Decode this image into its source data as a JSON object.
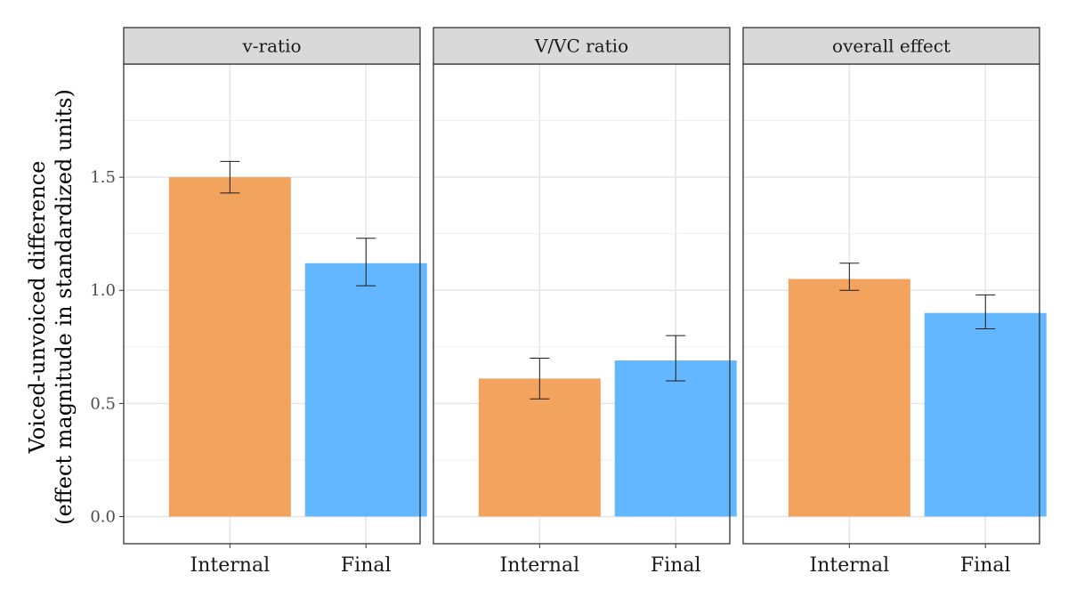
{
  "chart_data": {
    "type": "bar",
    "facets": [
      "v-ratio",
      "V/VC ratio",
      "overall effect"
    ],
    "categories": [
      "Internal",
      "Final"
    ],
    "panels": [
      {
        "facet": "v-ratio",
        "values": [
          1.5,
          1.12
        ],
        "error_low": [
          1.43,
          1.02
        ],
        "error_high": [
          1.57,
          1.23
        ]
      },
      {
        "facet": "V/VC ratio",
        "values": [
          0.61,
          0.69
        ],
        "error_low": [
          0.52,
          0.6
        ],
        "error_high": [
          0.7,
          0.8
        ]
      },
      {
        "facet": "overall effect",
        "values": [
          1.05,
          0.9
        ],
        "error_low": [
          1.0,
          0.83
        ],
        "error_high": [
          1.12,
          0.98
        ]
      }
    ],
    "ylabel_line1": "Voiced-unvoiced difference",
    "ylabel_line2": "(effect magnitude in standardized units)",
    "xlabel": "",
    "yticks": [
      0.0,
      0.5,
      1.0,
      1.5
    ],
    "ytick_labels": [
      "0.0",
      "0.5",
      "1.0",
      "1.5"
    ],
    "ylim": [
      -0.12,
      2.0
    ],
    "grid": true,
    "colors": {
      "Internal": "#F2A35E",
      "Final": "#63B7FF"
    }
  }
}
